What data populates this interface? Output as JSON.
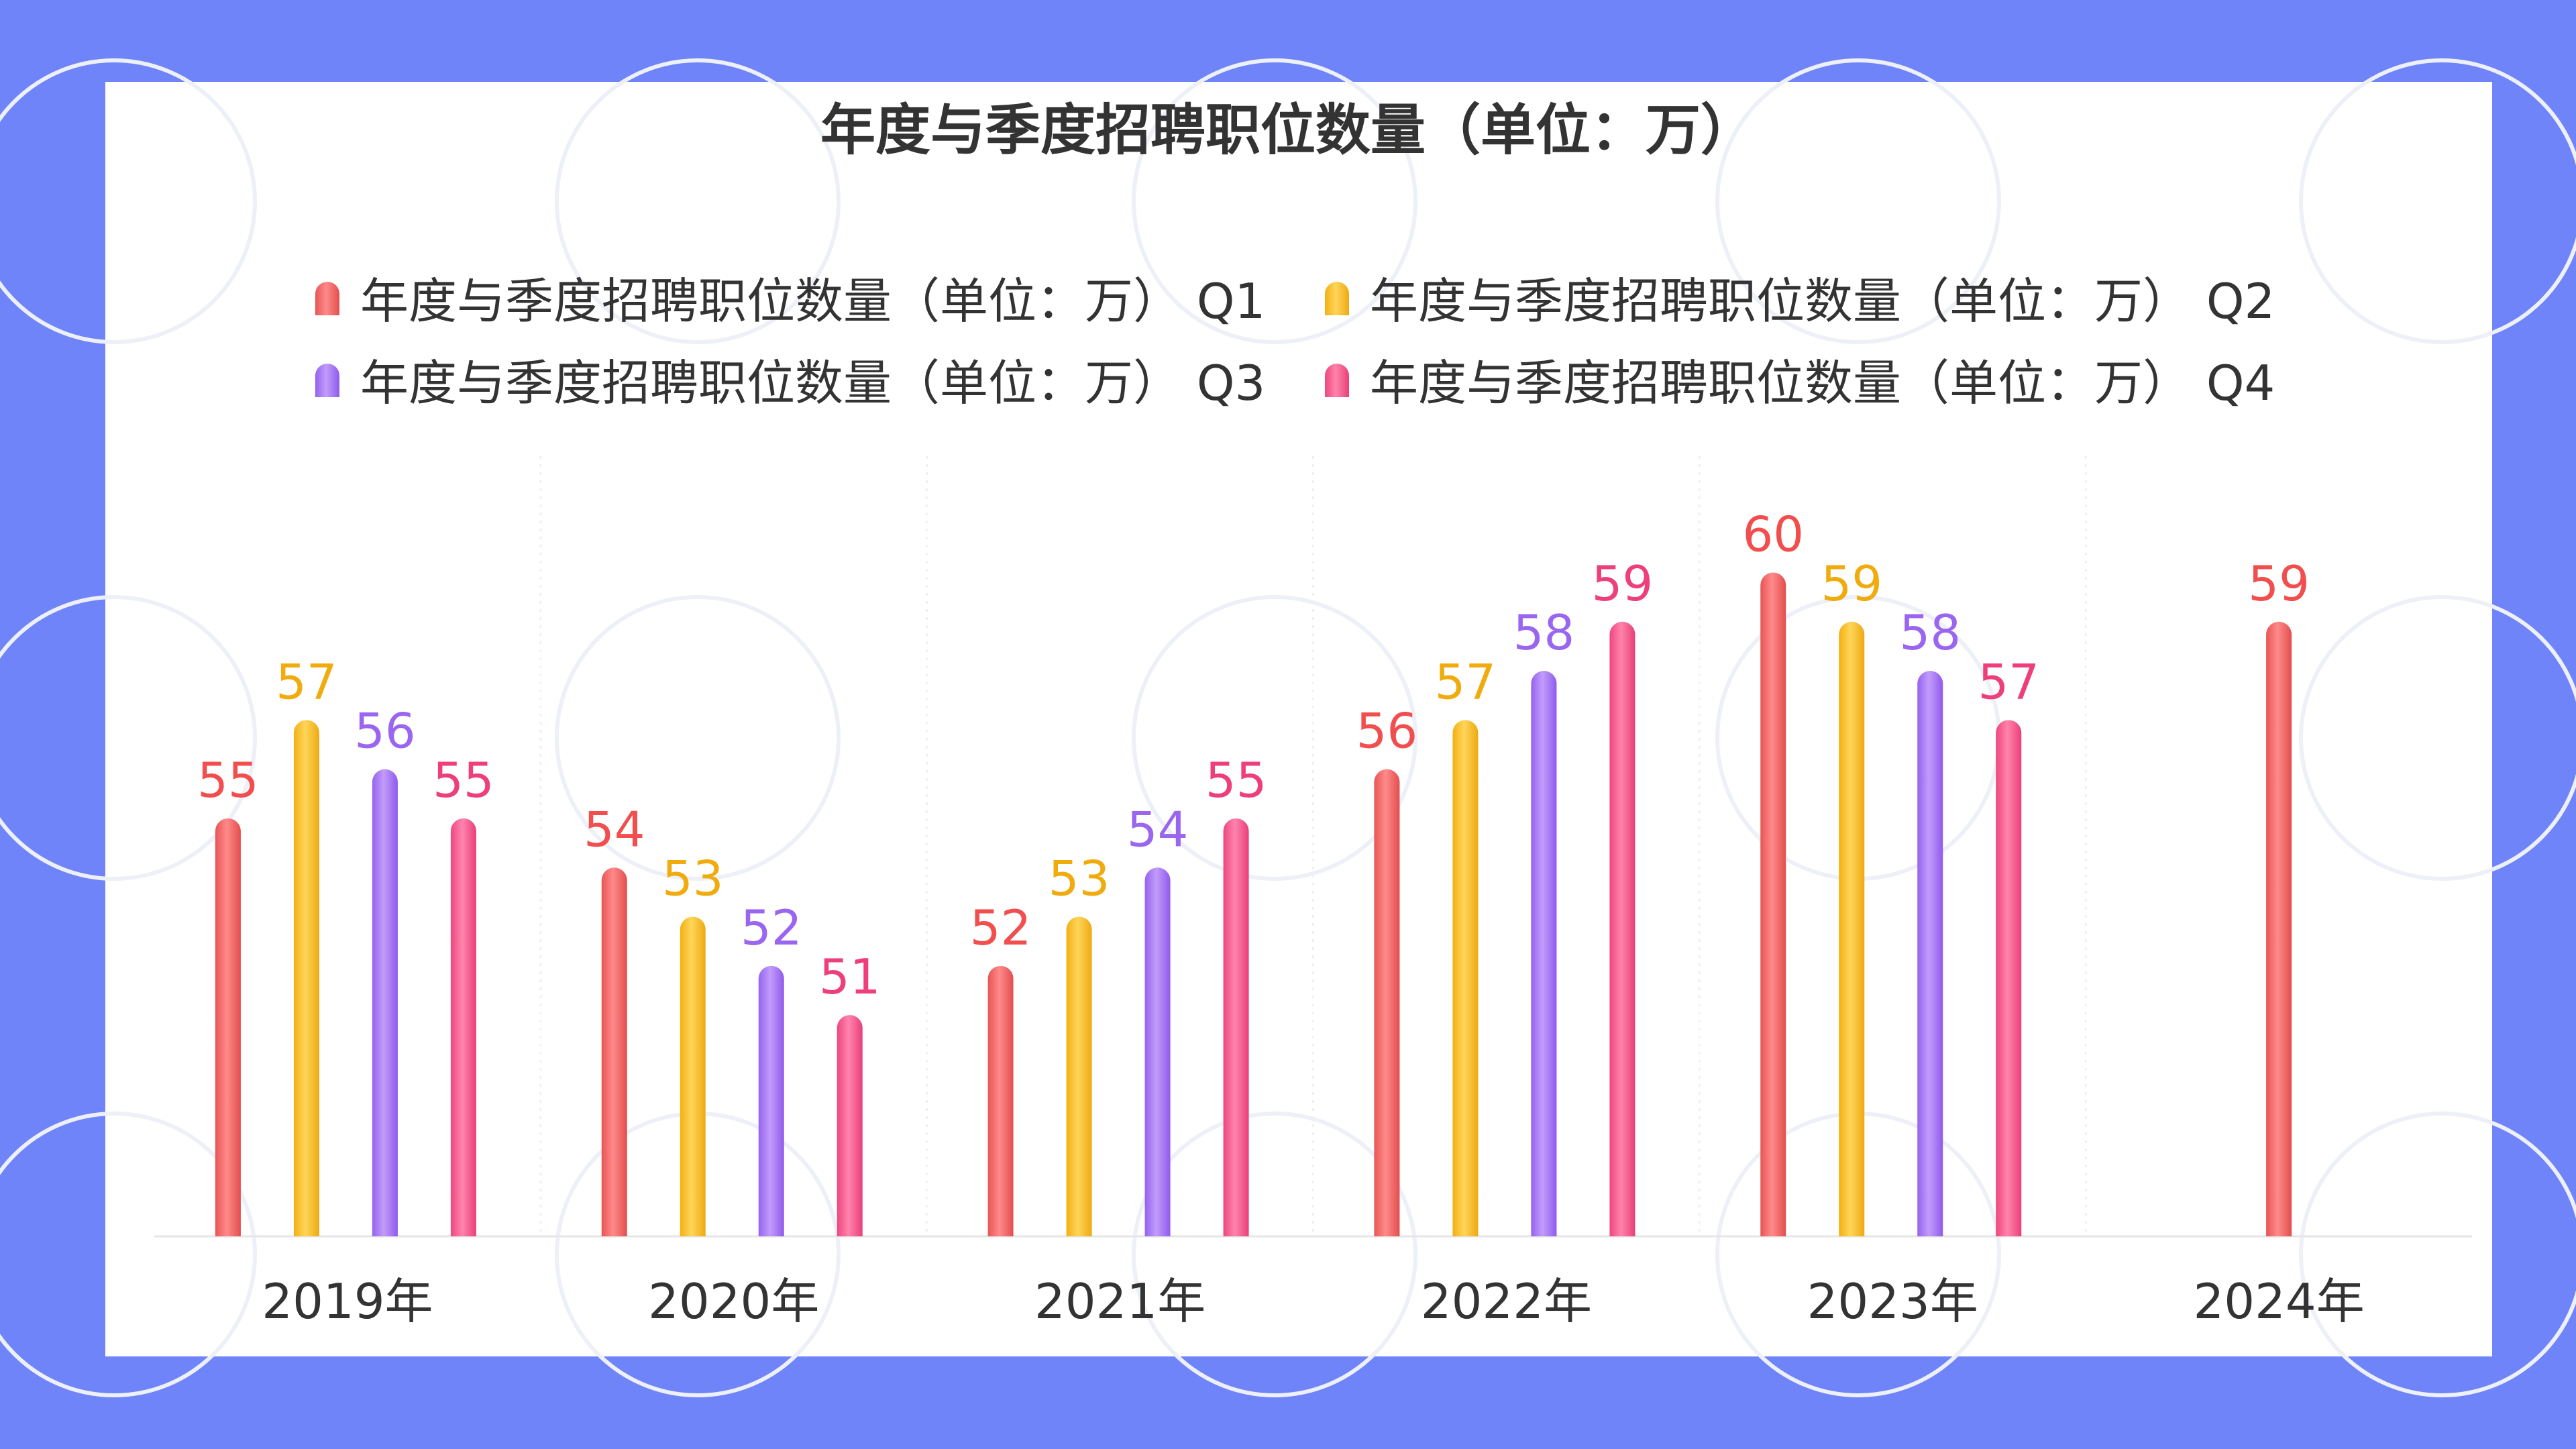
{
  "colors": {
    "background": "#6E84F8",
    "card": "#FFFFFF",
    "series": [
      "#F26B6B",
      "#F6BE2C",
      "#A97CF5",
      "#F25A8C"
    ],
    "series_labels": [
      "#F24E4E",
      "#F0AC0E",
      "#9A66F0",
      "#EE3F7A"
    ]
  },
  "chart_data": {
    "type": "bar",
    "title": "年度与季度招聘职位数量（单位：万）",
    "categories": [
      "2019年",
      "2020年",
      "2021年",
      "2022年",
      "2023年",
      "2024年"
    ],
    "series": [
      {
        "name": "年度与季度招聘职位数量（单位：万） Q1",
        "values": [
          55,
          54,
          52,
          56,
          60,
          59
        ]
      },
      {
        "name": "年度与季度招聘职位数量（单位：万） Q2",
        "values": [
          57,
          53,
          53,
          57,
          59,
          null
        ]
      },
      {
        "name": "年度与季度招聘职位数量（单位：万） Q3",
        "values": [
          56,
          52,
          54,
          58,
          58,
          null
        ]
      },
      {
        "name": "年度与季度招聘职位数量（单位：万） Q4",
        "values": [
          55,
          51,
          55,
          59,
          57,
          null
        ]
      }
    ],
    "xlabel": "",
    "ylabel": "",
    "ylim": [
      46.5,
      60
    ],
    "grid": false,
    "legend_position": "top-center"
  }
}
